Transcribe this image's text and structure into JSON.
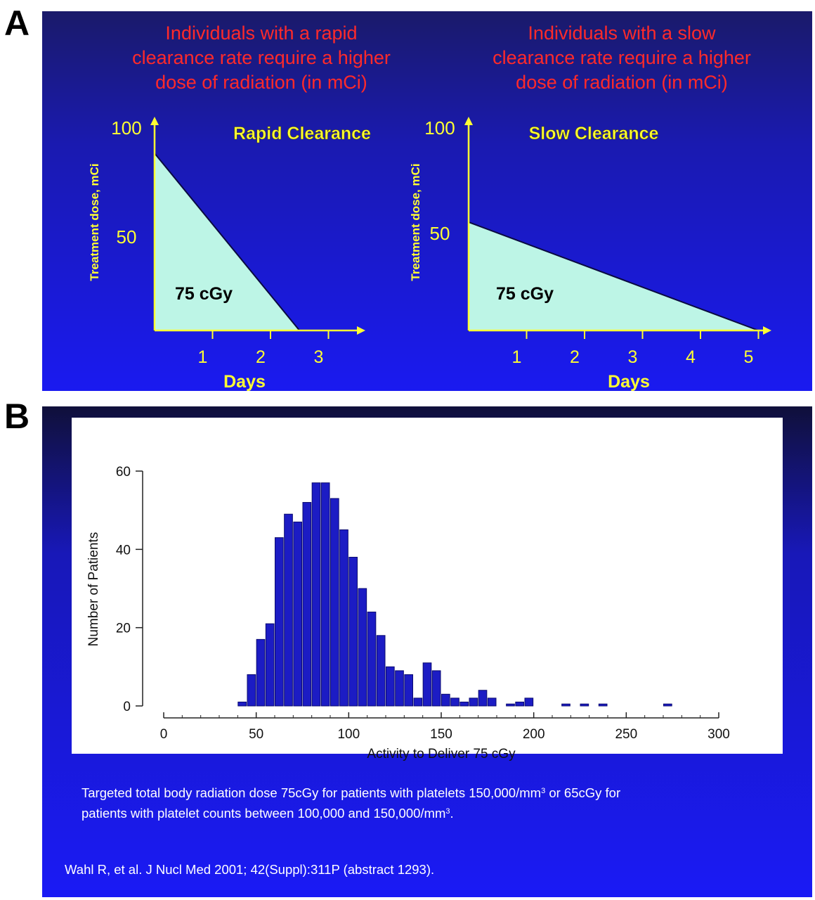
{
  "panel_labels": {
    "a": "A",
    "b": "B"
  },
  "panel_a": {
    "left_headline": [
      "Individuals with a rapid",
      "clearance rate require a higher",
      "dose of radiation (in mCi)"
    ],
    "right_headline": [
      "Individuals with a slow",
      "clearance rate require a higher",
      "dose of radiation (in mCi)"
    ]
  },
  "panel_b": {
    "caption_line1_pre": "Targeted total body radiation dose 75cGy for patients with platelets 150,000/mm",
    "caption_line1_sup": "3",
    "caption_line1_post": " or 65cGy for",
    "caption_line2_pre": "patients with platelet counts between 100,000 and 150,000/mm",
    "caption_line2_sup": "3",
    "caption_line2_post": ".",
    "citation": "Wahl R, et al. J Nucl Med 2001; 42(Suppl):311P (abstract 1293)."
  },
  "colors": {
    "headline": "#ff2a2a",
    "axis_yellow": "#ffff33",
    "fill_cyan": "#bdf5e6",
    "bar": "#1c1cc4",
    "bar_edge": "#0a0a70"
  },
  "chart_data": [
    {
      "type": "area",
      "title": "Rapid Clearance",
      "xlabel": "Days",
      "ylabel": "Treatment dose, mCi",
      "x": [
        0,
        2.5
      ],
      "y": [
        90,
        0
      ],
      "xticks": [
        "1",
        "2",
        "3"
      ],
      "yticks": [
        "50",
        "100"
      ],
      "xlim": [
        0,
        3.5
      ],
      "ylim": [
        0,
        100
      ],
      "annotation": "75 cGy"
    },
    {
      "type": "area",
      "title": "Slow Clearance",
      "xlabel": "Days",
      "ylabel": "Treatment dose, mCi",
      "x": [
        0,
        5
      ],
      "y": [
        55,
        0
      ],
      "xticks": [
        "1",
        "2",
        "3",
        "4",
        "5"
      ],
      "yticks": [
        "50",
        "100"
      ],
      "xlim": [
        0,
        5.3
      ],
      "ylim": [
        0,
        100
      ],
      "annotation": "75 cGy"
    },
    {
      "type": "bar",
      "xlabel": "Activity to Deliver 75 cGy",
      "ylabel": "Number of Patients",
      "xlim": [
        0,
        300
      ],
      "ylim": [
        0,
        60
      ],
      "xticks": [
        0,
        50,
        100,
        150,
        200,
        250,
        300
      ],
      "yticks": [
        0,
        20,
        40,
        60
      ],
      "grid": false,
      "bin_width": 5,
      "bins": [
        {
          "x": 42.5,
          "value": 1
        },
        {
          "x": 47.5,
          "value": 8
        },
        {
          "x": 52.5,
          "value": 17
        },
        {
          "x": 57.5,
          "value": 21
        },
        {
          "x": 62.5,
          "value": 43
        },
        {
          "x": 67.5,
          "value": 49
        },
        {
          "x": 72.5,
          "value": 47
        },
        {
          "x": 77.5,
          "value": 52
        },
        {
          "x": 82.5,
          "value": 57
        },
        {
          "x": 87.5,
          "value": 57
        },
        {
          "x": 92.5,
          "value": 53
        },
        {
          "x": 97.5,
          "value": 45
        },
        {
          "x": 102.5,
          "value": 38
        },
        {
          "x": 107.5,
          "value": 30
        },
        {
          "x": 112.5,
          "value": 24
        },
        {
          "x": 117.5,
          "value": 18
        },
        {
          "x": 122.5,
          "value": 10
        },
        {
          "x": 127.5,
          "value": 9
        },
        {
          "x": 132.5,
          "value": 8
        },
        {
          "x": 137.5,
          "value": 2
        },
        {
          "x": 142.5,
          "value": 11
        },
        {
          "x": 147.5,
          "value": 9
        },
        {
          "x": 152.5,
          "value": 3
        },
        {
          "x": 157.5,
          "value": 2
        },
        {
          "x": 162.5,
          "value": 1
        },
        {
          "x": 167.5,
          "value": 2
        },
        {
          "x": 172.5,
          "value": 4
        },
        {
          "x": 177.5,
          "value": 2
        },
        {
          "x": 187.5,
          "value": 0.5
        },
        {
          "x": 192.5,
          "value": 1
        },
        {
          "x": 197.5,
          "value": 2
        },
        {
          "x": 217.5,
          "value": 0.5
        },
        {
          "x": 227.5,
          "value": 0.5
        },
        {
          "x": 237.5,
          "value": 0.5
        },
        {
          "x": 272.5,
          "value": 0.5
        }
      ]
    }
  ]
}
